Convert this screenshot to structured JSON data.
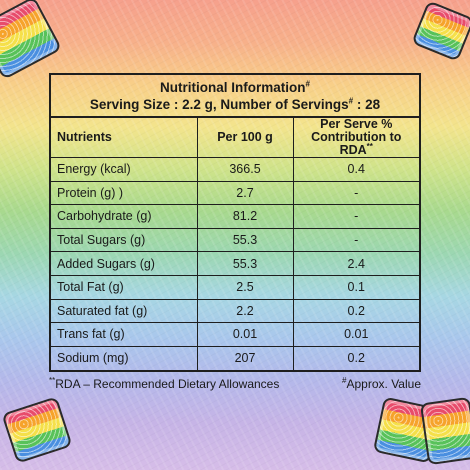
{
  "panel": {
    "title": "Nutritional Information",
    "title_mark": "#",
    "serving_prefix": "Serving Size : 2.2 g, Number of Servings",
    "serving_mark": "#",
    "serving_suffix": " : 28"
  },
  "table": {
    "headers": {
      "nutrients": "Nutrients",
      "per100": "Per 100 g",
      "rda_line1": "Per Serve %",
      "rda_line2": "Contribution to RDA",
      "rda_mark": "**"
    },
    "rows": [
      {
        "name": "Energy (kcal)",
        "per100": "366.5",
        "rda": "0.4"
      },
      {
        "name": "Protein (g) )",
        "per100": "2.7",
        "rda": "-"
      },
      {
        "name": "Carbohydrate (g)",
        "per100": "81.2",
        "rda": "-"
      },
      {
        "name": "Total Sugars (g)",
        "per100": "55.3",
        "rda": "-"
      },
      {
        "name": "Added Sugars (g)",
        "per100": "55.3",
        "rda": "2.4"
      },
      {
        "name": "Total Fat (g)",
        "per100": "2.5",
        "rda": "0.1"
      },
      {
        "name": "Saturated fat (g)",
        "per100": "2.2",
        "rda": "0.2"
      },
      {
        "name": "Trans fat (g)",
        "per100": "0.01",
        "rda": "0.01"
      },
      {
        "name": "Sodium (mg)",
        "per100": "207",
        "rda": "0.2"
      }
    ]
  },
  "footer": {
    "rda_mark": "**",
    "rda_note": "RDA – Recommended Dietary Allowances",
    "approx_mark": "#",
    "approx_note": "Approx. Value"
  },
  "colors": {
    "border": "#1e1e1e",
    "text": "#1a1a1a"
  }
}
